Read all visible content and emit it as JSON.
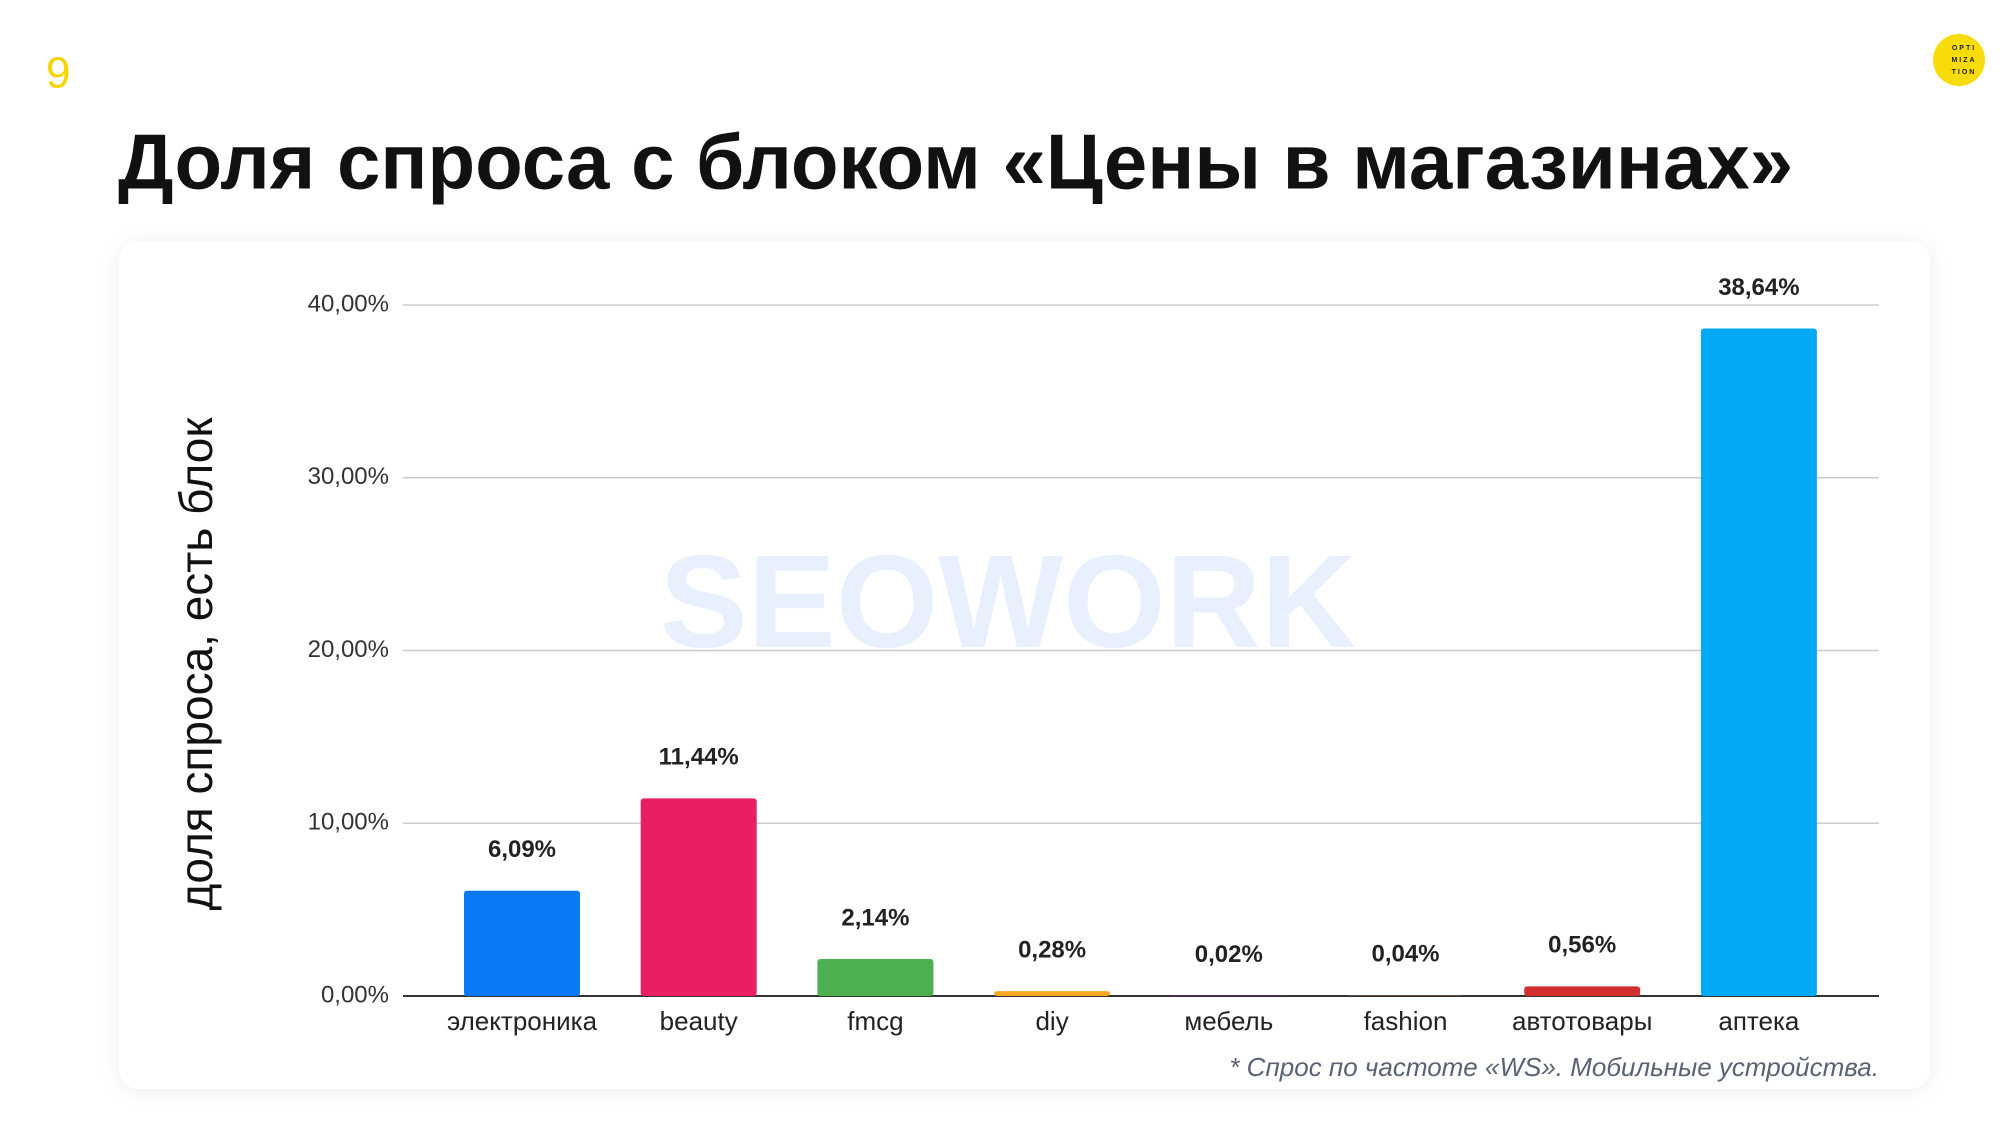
{
  "page_number": "9",
  "logo": {
    "lines": [
      "OPTI",
      "MIZA",
      "TION"
    ]
  },
  "title": "Доля спроса с блоком «Цены в магазинах»",
  "chart_data": {
    "type": "bar",
    "ylabel": "доля спроса, есть блок",
    "watermark": "SEOWORK",
    "categories": [
      "электроника",
      "beauty",
      "fmcg",
      "diy",
      "мебель",
      "fashion",
      "автотовары",
      "аптека"
    ],
    "values": [
      6.09,
      11.44,
      2.14,
      0.28,
      0.02,
      0.04,
      0.56,
      38.64
    ],
    "value_labels": [
      "6,09%",
      "11,44%",
      "2,14%",
      "0,28%",
      "0,02%",
      "0,04%",
      "0,56%",
      "38,64%"
    ],
    "colors": [
      "#0b78f4",
      "#e91e63",
      "#4caf50",
      "#f5a623",
      "#9c27b0",
      "#795548",
      "#d32f2f",
      "#03a9f4"
    ],
    "ylim": [
      0,
      40
    ],
    "yticks": [
      {
        "value": 0,
        "label": "0,00%"
      },
      {
        "value": 10,
        "label": "10,00%"
      },
      {
        "value": 20,
        "label": "20,00%"
      },
      {
        "value": 30,
        "label": "30,00%"
      },
      {
        "value": 40,
        "label": "40,00%"
      }
    ],
    "grid": true,
    "footnote": "* Спрос по частоте «WS». Мобильные устройства."
  }
}
